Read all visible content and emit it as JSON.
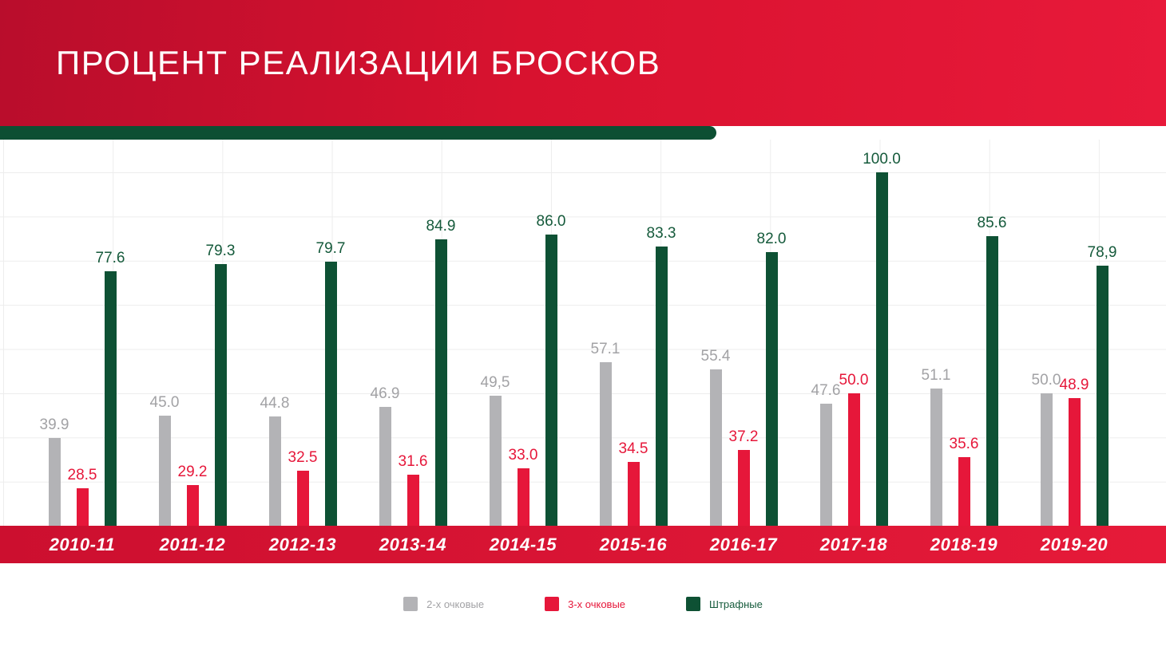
{
  "header": {
    "title": "ПРОЦЕНТ РЕАЛИЗАЦИИ БРОСКОВ"
  },
  "colors": {
    "banner_red_start": "#b90d2c",
    "banner_red_end": "#e8193a",
    "accent_green": "#0d4f33",
    "axis_band_red": "#e0143a",
    "grid_line": "#ededed"
  },
  "chart_data": {
    "type": "bar",
    "title": "ПРОЦЕНТ РЕАЛИЗАЦИИ БРОСКОВ",
    "categories": [
      "2010-11",
      "2011-12",
      "2012-13",
      "2013-14",
      "2014-15",
      "2015-16",
      "2016-17",
      "2017-18",
      "2018-19",
      "2019-20"
    ],
    "series": [
      {
        "name": "2-х очковые",
        "color": "#b3b3b6",
        "label_color": "#a2a2a5",
        "values": [
          39.9,
          45.0,
          44.8,
          46.9,
          49.5,
          57.1,
          55.4,
          47.6,
          51.1,
          50.0
        ],
        "labels": [
          "39.9",
          "45.0",
          "44.8",
          "46.9",
          "49,5",
          "57.1",
          "55.4",
          "47.6",
          "51.1",
          "50.0"
        ]
      },
      {
        "name": "3-х очковые",
        "color": "#e6173a",
        "label_color": "#e6173a",
        "values": [
          28.5,
          29.2,
          32.5,
          31.6,
          33.0,
          34.5,
          37.2,
          50.0,
          35.6,
          48.9
        ],
        "labels": [
          "28.5",
          "29.2",
          "32.5",
          "31.6",
          "33.0",
          "34.5",
          "37.2",
          "50.0",
          "35.6",
          "48.9"
        ]
      },
      {
        "name": "Штрафные",
        "color": "#0e5134",
        "label_color": "#155a3b",
        "values": [
          77.6,
          79.3,
          79.7,
          84.9,
          86.0,
          83.3,
          82.0,
          100.0,
          85.6,
          78.9
        ],
        "labels": [
          "77.6",
          "79.3",
          "79.7",
          "84.9",
          "86.0",
          "83.3",
          "82.0",
          "100.0",
          "85.6",
          "78,9"
        ]
      }
    ],
    "ylim": [
      20,
      100
    ],
    "grid": true,
    "legend_position": "bottom"
  }
}
